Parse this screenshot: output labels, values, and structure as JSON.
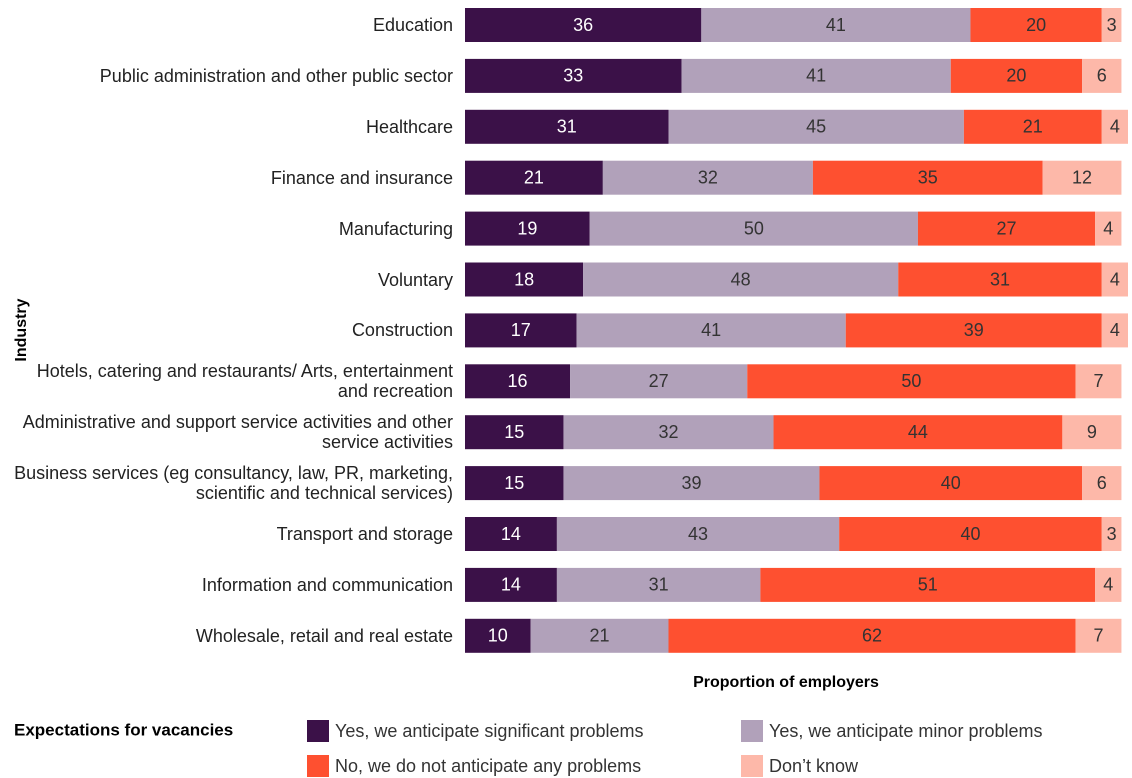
{
  "chart_data": {
    "type": "stacked-bar-horizontal",
    "y_axis_label": "Industry",
    "x_axis_label": "Proportion of employers",
    "legend_title": "Expectations for vacancies",
    "categories": [
      "Education",
      "Public administration and other public sector",
      "Healthcare",
      "Finance and insurance",
      "Manufacturing",
      "Voluntary",
      "Construction",
      "Hotels, catering and restaurants/ Arts, entertainment and recreation",
      "Administrative and support service activities and other service activities",
      "Business services (eg consultancy, law, PR, marketing, scientific and technical services)",
      "Transport and storage",
      "Information and communication",
      "Wholesale, retail and real estate"
    ],
    "series": [
      {
        "name": "Yes, we anticipate significant problems",
        "color": "#3b1148",
        "label_color": "#ffffff",
        "values": [
          36,
          33,
          31,
          21,
          19,
          18,
          17,
          16,
          15,
          15,
          14,
          14,
          10
        ]
      },
      {
        "name": "Yes, we anticipate minor problems",
        "color": "#b1a1ba",
        "label_color": "#333333",
        "values": [
          41,
          41,
          45,
          32,
          50,
          48,
          41,
          27,
          32,
          39,
          43,
          31,
          21
        ]
      },
      {
        "name": "No, we do not anticipate any problems",
        "color": "#fe5030",
        "label_color": "#333333",
        "values": [
          20,
          20,
          21,
          35,
          27,
          31,
          39,
          50,
          44,
          40,
          40,
          51,
          62
        ]
      },
      {
        "name": "Don’t know",
        "color": "#fdb8a9",
        "label_color": "#333333",
        "values": [
          3,
          6,
          4,
          12,
          4,
          4,
          4,
          7,
          9,
          6,
          3,
          4,
          7
        ]
      }
    ]
  }
}
